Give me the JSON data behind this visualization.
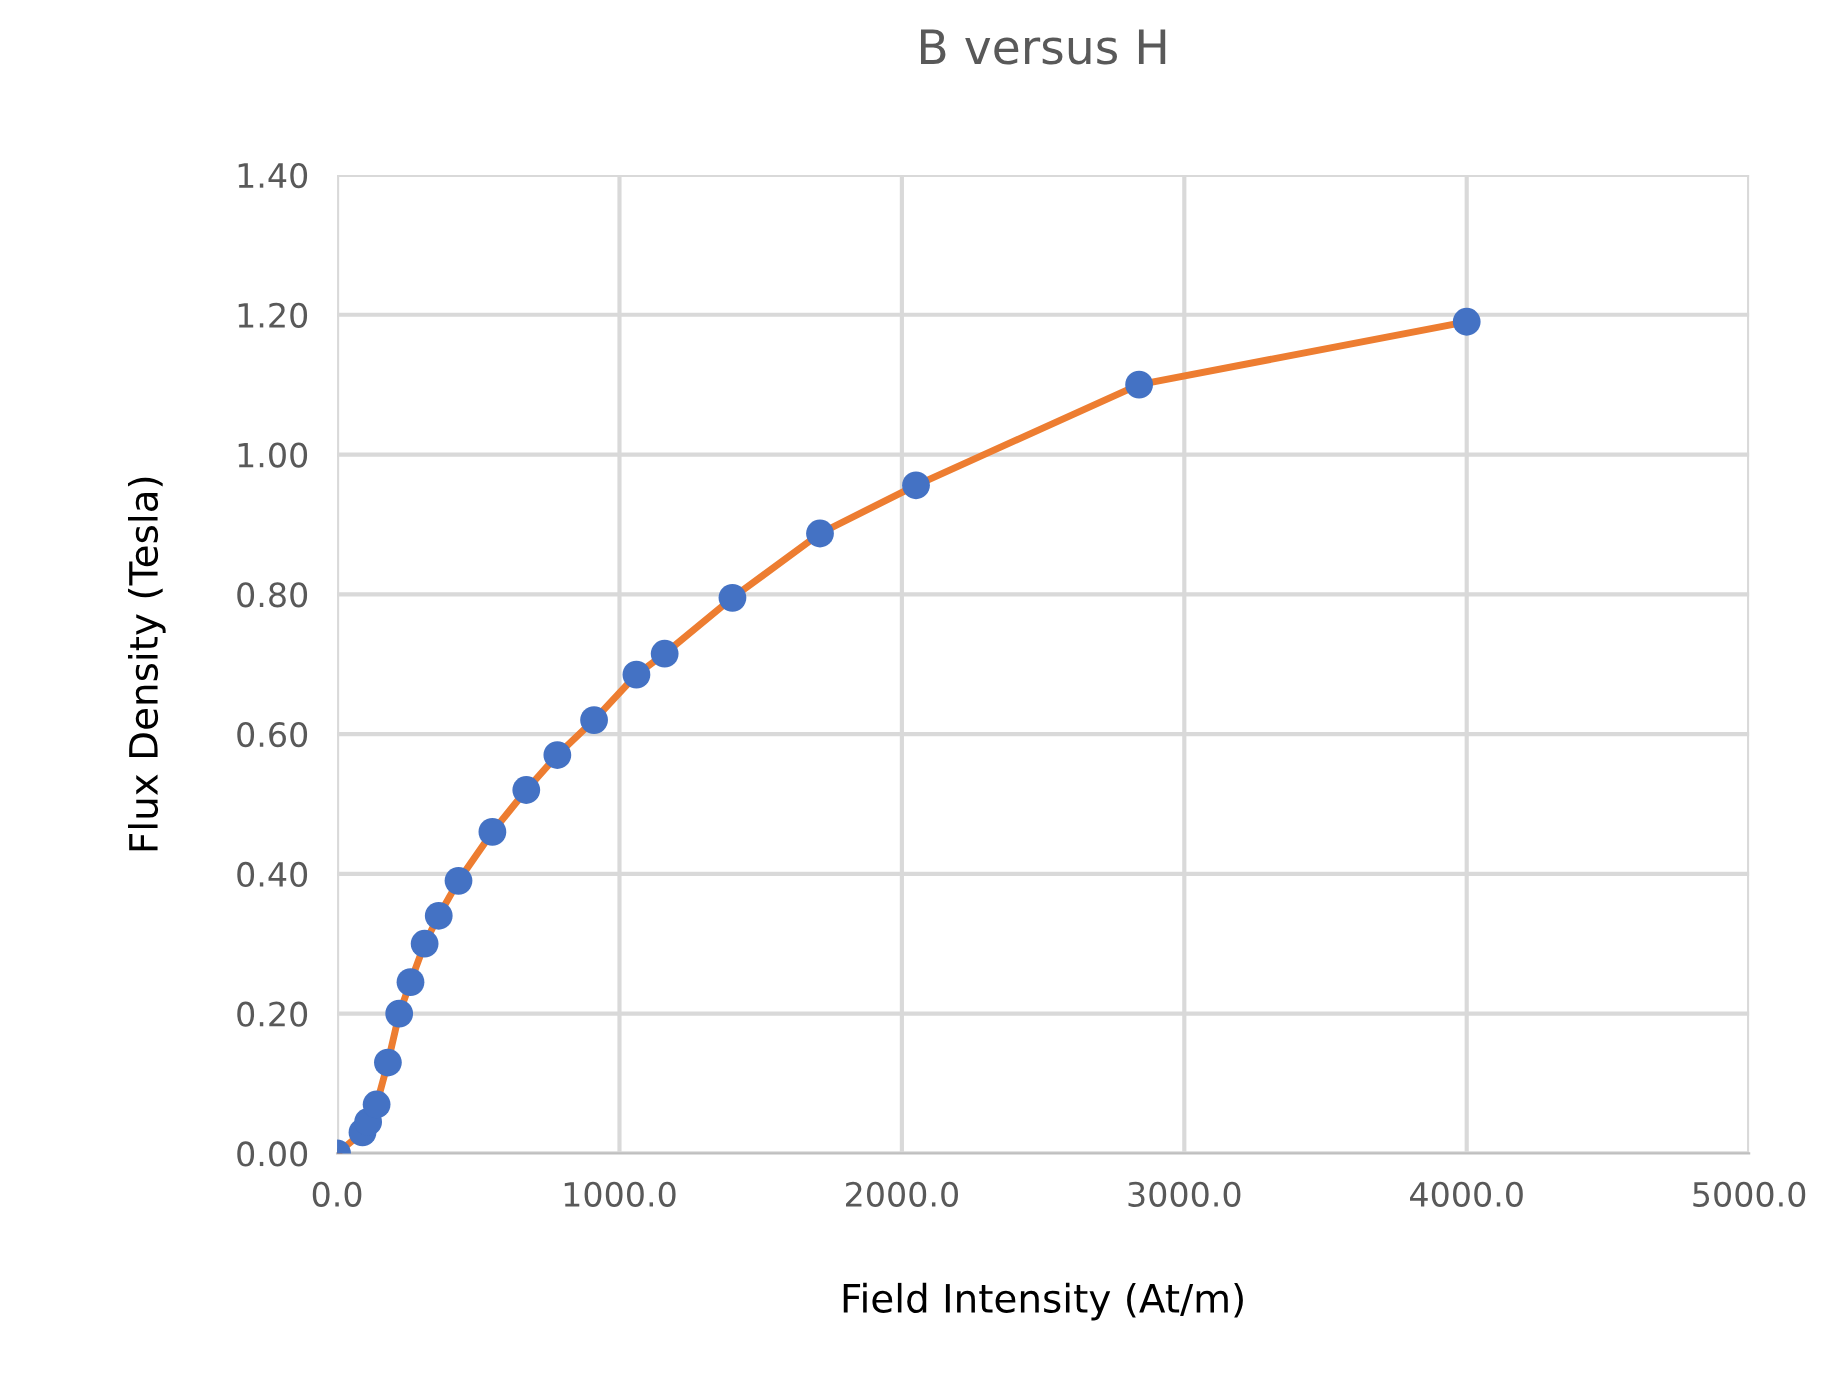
{
  "chart_data": {
    "type": "line",
    "title": "B versus H",
    "xlabel": "Field Intensity (At/m)",
    "ylabel": "Flux Density (Tesla)",
    "x": [
      0,
      90,
      110,
      140,
      180,
      220,
      260,
      310,
      360,
      430,
      550,
      670,
      780,
      910,
      1060,
      1160,
      1400,
      1710,
      2050,
      2840,
      4000
    ],
    "series": [
      {
        "values": [
          0,
          0.03,
          0.045,
          0.07,
          0.13,
          0.2,
          0.245,
          0.3,
          0.34,
          0.39,
          0.46,
          0.52,
          0.57,
          0.62,
          0.685,
          0.715,
          0.795,
          0.887,
          0.956,
          1.1,
          1.19
        ],
        "color": "#ed7d31",
        "colors": [
          "#4472c4",
          "#4472c4",
          "#4472c4",
          "#4472c4",
          "#4472c4",
          "#4472c4",
          "#4472c4",
          "#4472c4",
          "#4472c4",
          "#4472c4",
          "#4472c4",
          "#4472c4",
          "#4472c4",
          "#4472c4",
          "#4472c4",
          "#4472c4",
          "#4472c4",
          "#4472c4",
          "#4472c4",
          "#4472c4",
          "#4472c4"
        ]
      }
    ],
    "marker": "circle",
    "line_style": "solid",
    "xlim": [
      0,
      5000
    ],
    "ylim": [
      0,
      1.4
    ],
    "xticks": [
      {
        "value": 0,
        "label": "0.0"
      },
      {
        "value": 1000,
        "label": "1000.0"
      },
      {
        "value": 2000,
        "label": "2000.0"
      },
      {
        "value": 3000,
        "label": "3000.0"
      },
      {
        "value": 4000,
        "label": "4000.0"
      },
      {
        "value": 5000,
        "label": "5000.0"
      }
    ],
    "yticks": [
      {
        "value": 0,
        "label": "0.00"
      },
      {
        "value": 0.2,
        "label": "0.20"
      },
      {
        "value": 0.4,
        "label": "0.40"
      },
      {
        "value": 0.6,
        "label": "0.60"
      },
      {
        "value": 0.8,
        "label": "0.80"
      },
      {
        "value": 1.0,
        "label": "1.00"
      },
      {
        "value": 1.2,
        "label": "1.20"
      },
      {
        "value": 1.4,
        "label": "1.40"
      }
    ],
    "grid": true
  }
}
